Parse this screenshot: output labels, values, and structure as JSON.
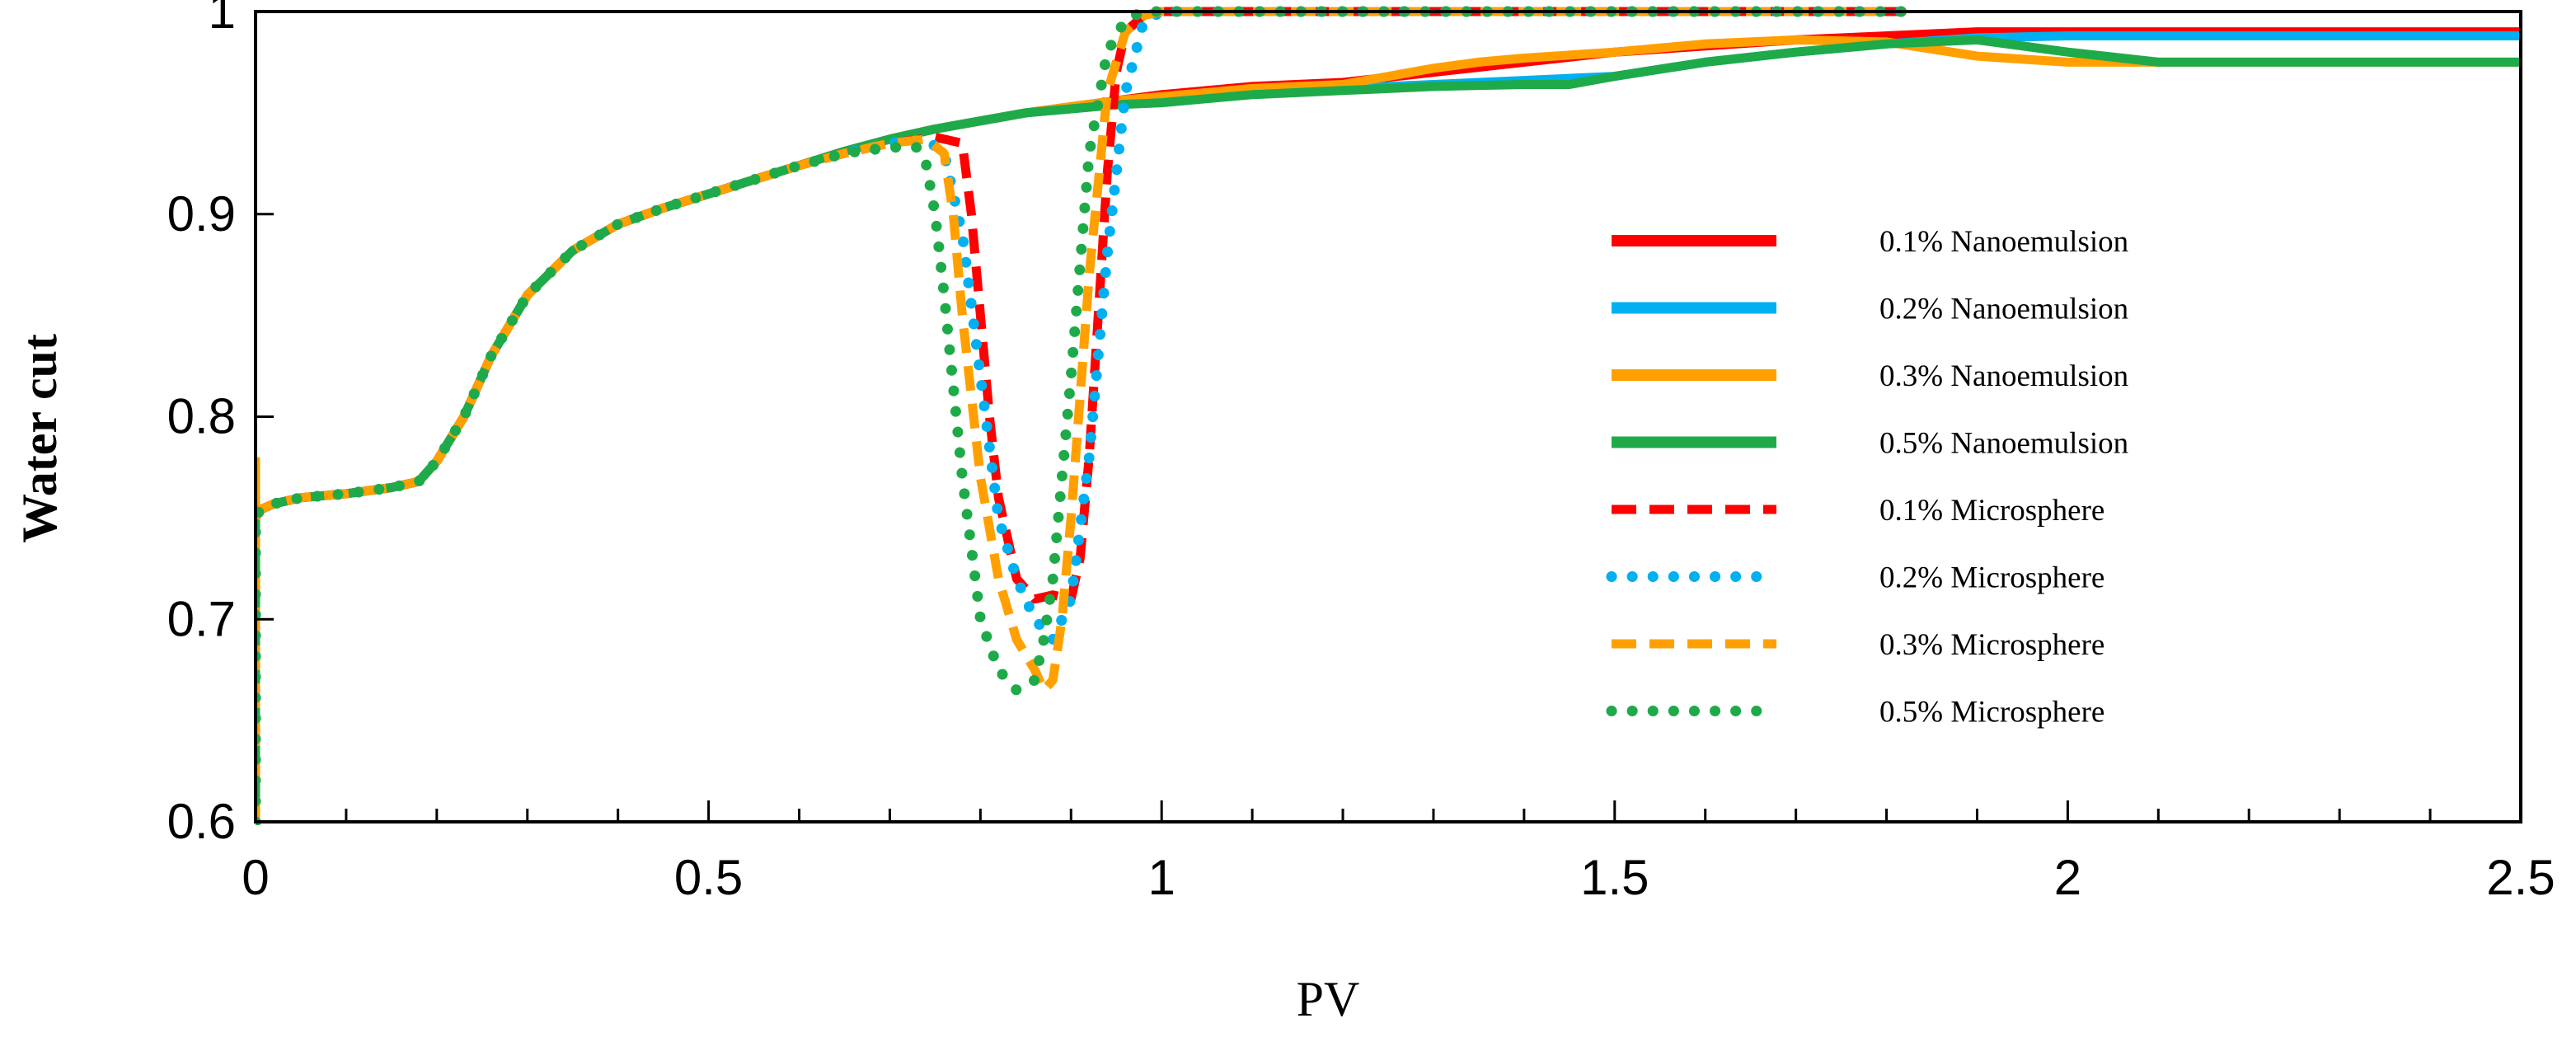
{
  "chart_data": {
    "type": "line",
    "title": "",
    "xlabel": "PV",
    "ylabel": "Water cut",
    "xlim": [
      0,
      2.5
    ],
    "ylim": [
      0.6,
      1.0
    ],
    "xticks": [
      0,
      0.5,
      1,
      1.5,
      2,
      2.5
    ],
    "xtick_labels": [
      "0",
      "0.5",
      "1",
      "1.5",
      "2",
      "2.5"
    ],
    "yticks": [
      0.6,
      0.7,
      0.8,
      0.9,
      1.0
    ],
    "ytick_labels": [
      "0.6",
      "0.7",
      "0.8",
      "0.9",
      "1"
    ],
    "x_minor_step": 0.1,
    "grid": false,
    "legend_position": "right",
    "series": [
      {
        "name": "0.1% Nanoemulsion",
        "color": "#ff0000",
        "style": "solid",
        "x": [
          0,
          0,
          0.005,
          0.02,
          0.05,
          0.1,
          0.15,
          0.18,
          0.2,
          0.23,
          0.26,
          0.3,
          0.35,
          0.4,
          0.45,
          0.5,
          0.55,
          0.6,
          0.65,
          0.7,
          0.75,
          0.8,
          0.85,
          0.9,
          0.95,
          1.0,
          1.05,
          1.1,
          1.2,
          1.3,
          1.4,
          1.5,
          1.6,
          1.7,
          1.8,
          1.9,
          2.0,
          2.1,
          2.2,
          2.3,
          2.4,
          2.5
        ],
        "y": [
          0.6,
          0.75,
          0.754,
          0.757,
          0.76,
          0.762,
          0.765,
          0.768,
          0.778,
          0.8,
          0.83,
          0.86,
          0.882,
          0.895,
          0.903,
          0.91,
          0.917,
          0.924,
          0.931,
          0.937,
          0.942,
          0.946,
          0.95,
          0.953,
          0.956,
          0.959,
          0.961,
          0.963,
          0.965,
          0.97,
          0.975,
          0.98,
          0.983,
          0.986,
          0.988,
          0.99,
          0.99,
          0.99,
          0.99,
          0.99,
          0.99,
          0.99
        ]
      },
      {
        "name": "0.2% Nanoemulsion",
        "color": "#00b0f0",
        "style": "solid",
        "x": [
          0,
          0,
          0.005,
          0.02,
          0.05,
          0.1,
          0.15,
          0.18,
          0.2,
          0.23,
          0.26,
          0.3,
          0.35,
          0.4,
          0.45,
          0.5,
          0.55,
          0.6,
          0.65,
          0.7,
          0.75,
          0.8,
          0.85,
          0.9,
          0.95,
          1.0,
          1.05,
          1.1,
          1.2,
          1.3,
          1.4,
          1.5,
          1.6,
          1.7,
          1.8,
          1.9,
          2.0,
          2.1,
          2.2,
          2.3,
          2.4,
          2.5
        ],
        "y": [
          0.6,
          0.75,
          0.754,
          0.757,
          0.76,
          0.762,
          0.765,
          0.768,
          0.778,
          0.8,
          0.83,
          0.86,
          0.882,
          0.895,
          0.903,
          0.91,
          0.917,
          0.924,
          0.931,
          0.937,
          0.942,
          0.946,
          0.95,
          0.952,
          0.954,
          0.956,
          0.958,
          0.96,
          0.962,
          0.964,
          0.966,
          0.968,
          0.975,
          0.98,
          0.984,
          0.987,
          0.988,
          0.988,
          0.988,
          0.988,
          0.988,
          0.988
        ]
      },
      {
        "name": "0.3% Nanoemulsion",
        "color": "#ffa000",
        "style": "solid",
        "x": [
          0,
          0,
          0.005,
          0.02,
          0.05,
          0.1,
          0.15,
          0.18,
          0.2,
          0.23,
          0.26,
          0.3,
          0.35,
          0.4,
          0.45,
          0.5,
          0.55,
          0.6,
          0.65,
          0.7,
          0.75,
          0.8,
          0.85,
          0.9,
          0.95,
          1.0,
          1.05,
          1.1,
          1.2,
          1.3,
          1.35,
          1.4,
          1.5,
          1.6,
          1.7,
          1.8,
          1.9,
          2.0,
          2.1,
          2.2,
          2.3,
          2.4,
          2.5
        ],
        "y": [
          0.78,
          0.75,
          0.754,
          0.757,
          0.76,
          0.762,
          0.765,
          0.768,
          0.778,
          0.8,
          0.83,
          0.86,
          0.882,
          0.895,
          0.903,
          0.91,
          0.917,
          0.924,
          0.931,
          0.937,
          0.942,
          0.946,
          0.95,
          0.953,
          0.956,
          0.958,
          0.96,
          0.962,
          0.964,
          0.972,
          0.975,
          0.977,
          0.98,
          0.984,
          0.986,
          0.985,
          0.978,
          0.975,
          0.975,
          0.975,
          0.975,
          0.975,
          0.975
        ]
      },
      {
        "name": "0.5% Nanoemulsion",
        "color": "#1faa4a",
        "style": "solid",
        "x": [
          0,
          0,
          0.005,
          0.02,
          0.05,
          0.1,
          0.15,
          0.18,
          0.2,
          0.23,
          0.26,
          0.3,
          0.35,
          0.4,
          0.45,
          0.5,
          0.55,
          0.6,
          0.65,
          0.7,
          0.75,
          0.8,
          0.85,
          0.9,
          0.95,
          1.0,
          1.05,
          1.1,
          1.2,
          1.3,
          1.4,
          1.45,
          1.5,
          1.6,
          1.7,
          1.8,
          1.9,
          2.0,
          2.1,
          2.2,
          2.3,
          2.4,
          2.5
        ],
        "y": [
          0.6,
          0.75,
          0.754,
          0.757,
          0.76,
          0.762,
          0.765,
          0.768,
          0.778,
          0.8,
          0.83,
          0.86,
          0.882,
          0.895,
          0.903,
          0.91,
          0.917,
          0.924,
          0.931,
          0.937,
          0.942,
          0.946,
          0.95,
          0.952,
          0.954,
          0.955,
          0.957,
          0.959,
          0.961,
          0.963,
          0.964,
          0.964,
          0.968,
          0.975,
          0.98,
          0.984,
          0.986,
          0.98,
          0.975,
          0.975,
          0.975,
          0.975,
          0.975
        ]
      },
      {
        "name": "0.1% Microsphere",
        "color": "#ff0000",
        "style": "dash",
        "x": [
          0,
          0,
          0.005,
          0.02,
          0.05,
          0.1,
          0.15,
          0.18,
          0.2,
          0.23,
          0.26,
          0.3,
          0.35,
          0.4,
          0.45,
          0.5,
          0.55,
          0.6,
          0.65,
          0.7,
          0.75,
          0.78,
          0.79,
          0.8,
          0.81,
          0.82,
          0.84,
          0.86,
          0.88,
          0.9,
          0.91,
          0.92,
          0.93,
          0.94,
          0.95,
          0.96,
          0.98,
          1.0,
          1.2,
          1.4,
          1.6,
          1.8,
          1.82
        ],
        "y": [
          0.6,
          0.75,
          0.754,
          0.757,
          0.76,
          0.762,
          0.765,
          0.768,
          0.778,
          0.8,
          0.83,
          0.86,
          0.882,
          0.895,
          0.903,
          0.91,
          0.917,
          0.924,
          0.93,
          0.935,
          0.938,
          0.935,
          0.9,
          0.85,
          0.8,
          0.76,
          0.72,
          0.71,
          0.712,
          0.71,
          0.73,
          0.78,
          0.85,
          0.92,
          0.97,
          0.99,
          0.998,
          1.0,
          1.0,
          1.0,
          1.0,
          1.0,
          1.0
        ]
      },
      {
        "name": "0.2% Microsphere",
        "color": "#00b0f0",
        "style": "dot",
        "x": [
          0,
          0,
          0.005,
          0.02,
          0.05,
          0.1,
          0.15,
          0.18,
          0.2,
          0.23,
          0.26,
          0.3,
          0.35,
          0.4,
          0.45,
          0.5,
          0.55,
          0.6,
          0.65,
          0.7,
          0.74,
          0.76,
          0.78,
          0.8,
          0.82,
          0.84,
          0.86,
          0.88,
          0.9,
          0.92,
          0.94,
          0.96,
          0.98,
          1.0,
          1.2,
          1.4,
          1.6,
          1.8,
          1.82
        ],
        "y": [
          0.6,
          0.75,
          0.754,
          0.757,
          0.76,
          0.762,
          0.765,
          0.768,
          0.778,
          0.8,
          0.83,
          0.86,
          0.882,
          0.895,
          0.903,
          0.91,
          0.917,
          0.924,
          0.93,
          0.935,
          0.937,
          0.93,
          0.89,
          0.82,
          0.75,
          0.72,
          0.7,
          0.69,
          0.71,
          0.78,
          0.88,
          0.96,
          0.995,
          1.0,
          1.0,
          1.0,
          1.0,
          1.0,
          1.0
        ]
      },
      {
        "name": "0.3% Microsphere",
        "color": "#ffa000",
        "style": "dash",
        "x": [
          0,
          0,
          0.005,
          0.02,
          0.05,
          0.1,
          0.15,
          0.18,
          0.2,
          0.23,
          0.26,
          0.3,
          0.35,
          0.4,
          0.45,
          0.5,
          0.55,
          0.6,
          0.65,
          0.7,
          0.74,
          0.76,
          0.77,
          0.78,
          0.8,
          0.82,
          0.84,
          0.86,
          0.87,
          0.88,
          0.89,
          0.9,
          0.92,
          0.94,
          0.96,
          0.98,
          1.0,
          1.2,
          1.4,
          1.6,
          1.8,
          1.82
        ],
        "y": [
          0.6,
          0.75,
          0.754,
          0.757,
          0.76,
          0.762,
          0.765,
          0.768,
          0.778,
          0.8,
          0.83,
          0.86,
          0.882,
          0.895,
          0.903,
          0.91,
          0.917,
          0.924,
          0.93,
          0.935,
          0.937,
          0.93,
          0.9,
          0.85,
          0.77,
          0.72,
          0.69,
          0.675,
          0.665,
          0.67,
          0.7,
          0.75,
          0.87,
          0.96,
          0.99,
          0.998,
          1.0,
          1.0,
          1.0,
          1.0,
          1.0,
          1.0
        ]
      },
      {
        "name": "0.5% Microsphere",
        "color": "#1faa4a",
        "style": "dot",
        "x": [
          0,
          0,
          0.005,
          0.02,
          0.05,
          0.1,
          0.15,
          0.18,
          0.2,
          0.23,
          0.26,
          0.3,
          0.35,
          0.4,
          0.45,
          0.5,
          0.55,
          0.6,
          0.65,
          0.7,
          0.73,
          0.74,
          0.75,
          0.76,
          0.78,
          0.8,
          0.82,
          0.84,
          0.86,
          0.87,
          0.88,
          0.9,
          0.92,
          0.94,
          0.96,
          0.98,
          1.0,
          1.2,
          1.4,
          1.6,
          1.8,
          1.82
        ],
        "y": [
          0.6,
          0.75,
          0.754,
          0.757,
          0.76,
          0.762,
          0.765,
          0.768,
          0.778,
          0.8,
          0.83,
          0.86,
          0.882,
          0.895,
          0.903,
          0.91,
          0.917,
          0.924,
          0.93,
          0.933,
          0.933,
          0.925,
          0.9,
          0.86,
          0.77,
          0.7,
          0.675,
          0.665,
          0.67,
          0.69,
          0.72,
          0.82,
          0.93,
          0.98,
          0.996,
          1.0,
          1.0,
          1.0,
          1.0,
          1.0,
          1.0,
          1.0
        ]
      }
    ]
  }
}
